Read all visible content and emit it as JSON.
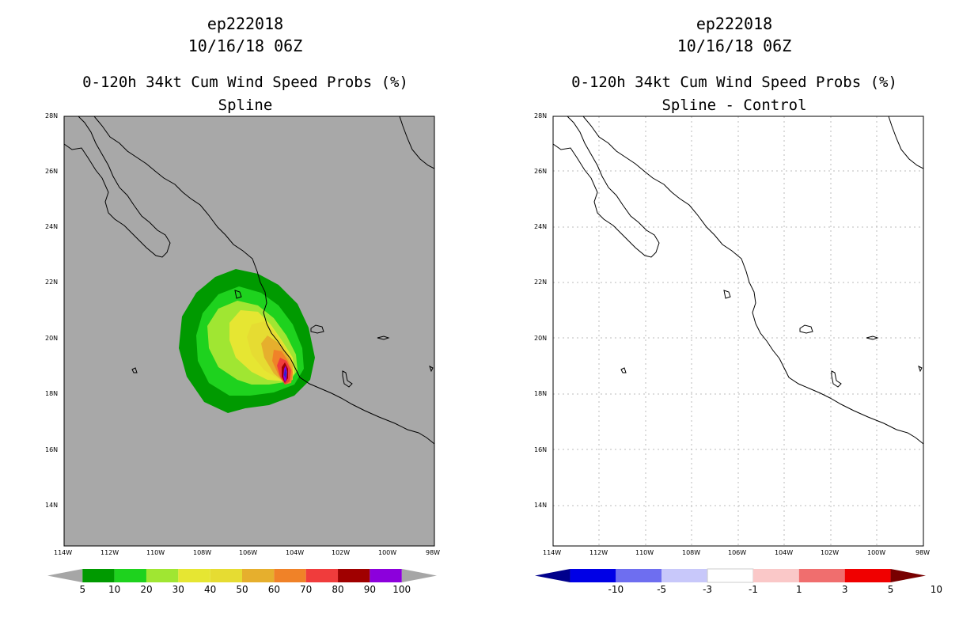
{
  "left_panel": {
    "storm_id": "ep222018",
    "datetime": "10/16/18 06Z",
    "product": "0-120h 34kt Cum Wind Speed Probs (%)",
    "subtitle": "Spline",
    "colorbar": {
      "labels": [
        "5",
        "10",
        "20",
        "30",
        "40",
        "50",
        "60",
        "70",
        "80",
        "90",
        "100"
      ],
      "colors": [
        "#009a00",
        "#1ed21e",
        "#a0e632",
        "#e6e632",
        "#e6dc32",
        "#e6af2d",
        "#f08228",
        "#f03c3c",
        "#a00000",
        "#8c00dc"
      ],
      "low_color": "#a6a6a6",
      "high_color": "#a6a6a6"
    }
  },
  "right_panel": {
    "storm_id": "ep222018",
    "datetime": "10/16/18 06Z",
    "product": "0-120h 34kt Cum Wind Speed Probs (%)",
    "subtitle": "Spline - Control",
    "colorbar": {
      "labels": [
        "-10",
        "-5",
        "-3",
        "-1",
        "1",
        "3",
        "5",
        "10"
      ],
      "colors": [
        "#0000e6",
        "#6e6ef0",
        "#c8c8fa",
        "#ffffff",
        "#fac8c8",
        "#f06e6e",
        "#f00000"
      ],
      "low_color": "#00008c",
      "high_color": "#780000"
    }
  },
  "map": {
    "lat_labels": [
      "28N",
      "26N",
      "24N",
      "22N",
      "20N",
      "18N",
      "16N",
      "14N"
    ],
    "lon_labels": [
      "114W",
      "112W",
      "110W",
      "108W",
      "106W",
      "104W",
      "102W",
      "100W",
      "98W"
    ],
    "land_ocean_fill": "#a8a8a8"
  }
}
